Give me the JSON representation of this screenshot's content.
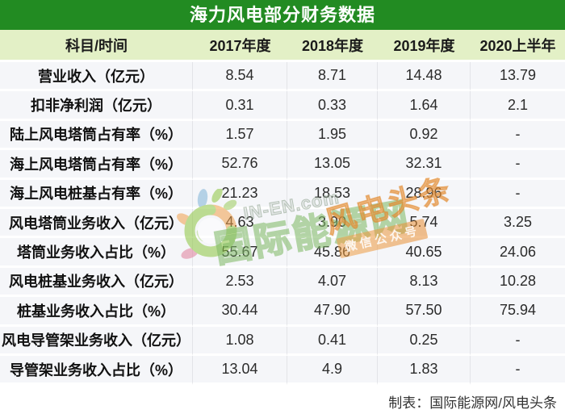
{
  "title": "海力风电部分财务数据",
  "table": {
    "columns": [
      "科目/时间",
      "2017年度",
      "2018年度",
      "2019年度",
      "2020上半年"
    ],
    "rows": [
      {
        "label": "营业收入（亿元）",
        "values": [
          "8.54",
          "8.71",
          "14.48",
          "13.79"
        ]
      },
      {
        "label": "扣非净利润（亿元）",
        "values": [
          "0.31",
          "0.33",
          "1.64",
          "2.1"
        ]
      },
      {
        "label": "陆上风电塔筒占有率（%）",
        "values": [
          "1.57",
          "1.95",
          "0.92",
          "-"
        ]
      },
      {
        "label": "海上风电塔筒占有率（%）",
        "values": [
          "52.76",
          "13.05",
          "32.31",
          "-"
        ]
      },
      {
        "label": "海上风电桩基占有率（%）",
        "values": [
          "21.23",
          "18.53",
          "28.96",
          "-"
        ]
      },
      {
        "label": "风电塔筒业务收入（亿元）",
        "values": [
          "4.63",
          "3.90",
          "5.74",
          "3.25"
        ]
      },
      {
        "label": "塔筒业务收入占比（%）",
        "values": [
          "55.67",
          "45.86",
          "40.65",
          "24.06"
        ]
      },
      {
        "label": "风电桩基业务收入（亿元）",
        "values": [
          "2.53",
          "4.07",
          "8.13",
          "10.28"
        ]
      },
      {
        "label": "桩基业务收入占比（%）",
        "values": [
          "30.44",
          "47.90",
          "57.50",
          "75.94"
        ]
      },
      {
        "label": "风电导管架业务收入（亿元）",
        "values": [
          "1.08",
          "0.41",
          "0.25",
          "-"
        ]
      },
      {
        "label": "导管架业务收入占比（%）",
        "values": [
          "13.04",
          "4.9",
          "1.83",
          "-"
        ]
      }
    ]
  },
  "footer": {
    "credit": "制表：国际能源网/风电头条"
  },
  "watermark": {
    "site_en": "IN-EN.com",
    "site_cn": "国际能源网",
    "channel": "风电头条",
    "badge": "微信公众号"
  },
  "colors": {
    "title_bar_green": "#228B22",
    "header_bg_green": "#e3f0c6",
    "row_bg": "#f5f6f9",
    "watermark_green": "#7ab661",
    "watermark_orange": "#ec963c"
  }
}
